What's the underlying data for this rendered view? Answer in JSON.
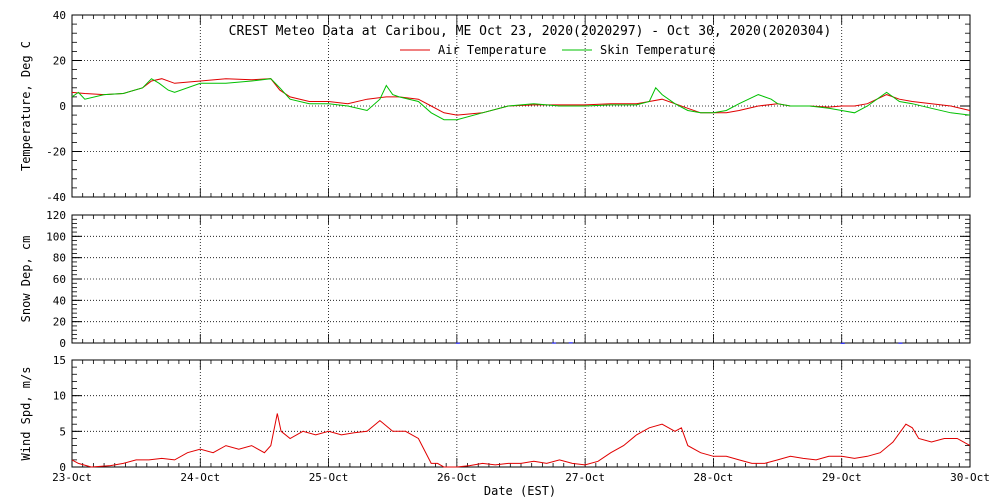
{
  "chart_data": [
    {
      "type": "line",
      "title": "CREST Meteo Data at Caribou, ME   Oct 23, 2020(2020297) - Oct 30, 2020(2020304)",
      "xlabel": "",
      "ylabel": "Temperature, Deg C",
      "xlim": [
        0,
        7
      ],
      "ylim": [
        -40,
        40
      ],
      "yticks": [
        -40,
        -20,
        0,
        20,
        40
      ],
      "grid": true,
      "legend": "top-center",
      "colors": {
        "Air Temperature": "#e00000",
        "Skin Temperature": "#00c000"
      },
      "series": [
        {
          "name": "Air Temperature",
          "x": [
            0,
            0.1,
            0.25,
            0.4,
            0.55,
            0.62,
            0.7,
            0.8,
            1.0,
            1.2,
            1.4,
            1.55,
            1.62,
            1.7,
            1.85,
            2.0,
            2.15,
            2.3,
            2.45,
            2.55,
            2.7,
            2.8,
            2.9,
            3.0,
            3.2,
            3.4,
            3.6,
            3.8,
            4.0,
            4.2,
            4.4,
            4.5,
            4.6,
            4.7,
            4.8,
            4.9,
            5.0,
            5.1,
            5.2,
            5.35,
            5.5,
            5.6,
            5.75,
            5.9,
            6.0,
            6.1,
            6.2,
            6.35,
            6.45,
            6.55,
            6.7,
            6.85,
            7.0
          ],
          "y": [
            6,
            5.5,
            5,
            5.5,
            8,
            11,
            12,
            10,
            11,
            12,
            11.5,
            12,
            7,
            4,
            2,
            2,
            1,
            3,
            4,
            4,
            3,
            0,
            -3,
            -4,
            -3,
            0,
            0.5,
            0.5,
            0.5,
            1,
            1,
            2,
            3,
            1,
            -1,
            -3,
            -3,
            -3,
            -2,
            0,
            1,
            0,
            0,
            -0.5,
            0,
            0,
            1,
            5,
            3,
            2,
            1,
            0,
            -2
          ]
        },
        {
          "name": "Skin Temperature",
          "x": [
            0,
            0.05,
            0.1,
            0.25,
            0.4,
            0.55,
            0.62,
            0.68,
            0.75,
            0.8,
            1.0,
            1.2,
            1.4,
            1.55,
            1.62,
            1.7,
            1.85,
            2.0,
            2.15,
            2.3,
            2.4,
            2.45,
            2.5,
            2.55,
            2.7,
            2.8,
            2.9,
            3.0,
            3.2,
            3.4,
            3.6,
            3.8,
            4.0,
            4.2,
            4.4,
            4.5,
            4.55,
            4.6,
            4.7,
            4.8,
            4.9,
            5.0,
            5.1,
            5.2,
            5.35,
            5.45,
            5.5,
            5.6,
            5.75,
            5.9,
            6.0,
            6.1,
            6.2,
            6.35,
            6.4,
            6.45,
            6.55,
            6.7,
            6.85,
            7.0
          ],
          "y": [
            4,
            6,
            3,
            5,
            5.5,
            8,
            12,
            10,
            7,
            6,
            10,
            10,
            11,
            12,
            8,
            3,
            1,
            1,
            0,
            -2,
            3,
            9,
            5,
            4,
            2,
            -3,
            -6,
            -6,
            -3,
            0,
            1,
            0,
            0,
            0.5,
            0.5,
            2,
            8,
            5,
            1,
            -2,
            -3,
            -3,
            -2,
            1,
            5,
            3,
            1,
            0,
            0,
            -1,
            -2,
            -3,
            0,
            6,
            4,
            2,
            1,
            -1,
            -3,
            -4
          ]
        }
      ]
    },
    {
      "type": "bar",
      "title": "",
      "xlabel": "",
      "ylabel": "Snow Dep, cm",
      "xlim": [
        0,
        7
      ],
      "ylim": [
        0,
        120
      ],
      "yticks": [
        0,
        20,
        40,
        60,
        80,
        100,
        120
      ],
      "grid": true,
      "colors": {
        "snow": "#0000ff"
      },
      "series": [
        {
          "x": [
            3.0,
            3.75,
            3.88,
            6.0,
            6.45
          ],
          "y": [
            0.3,
            0.4,
            0.6,
            0.2,
            0.3
          ]
        }
      ]
    },
    {
      "type": "line",
      "title": "",
      "xlabel": "Date (EST)",
      "ylabel": "Wind Spd, m/s",
      "xlim": [
        0,
        7
      ],
      "ylim": [
        0,
        15
      ],
      "yticks": [
        0,
        5,
        10,
        15
      ],
      "grid": true,
      "colors": {
        "wind": "#e00000"
      },
      "x_tick_labels": [
        "23-Oct",
        "24-Oct",
        "25-Oct",
        "26-Oct",
        "27-Oct",
        "28-Oct",
        "29-Oct",
        "30-Oct"
      ],
      "series": [
        {
          "x": [
            0,
            0.05,
            0.15,
            0.3,
            0.4,
            0.5,
            0.6,
            0.7,
            0.8,
            0.9,
            1.0,
            1.1,
            1.2,
            1.3,
            1.4,
            1.5,
            1.55,
            1.6,
            1.63,
            1.7,
            1.8,
            1.9,
            2.0,
            2.1,
            2.2,
            2.3,
            2.4,
            2.5,
            2.6,
            2.7,
            2.8,
            2.85,
            2.9,
            3.0,
            3.1,
            3.2,
            3.3,
            3.4,
            3.5,
            3.6,
            3.7,
            3.8,
            3.9,
            4.0,
            4.1,
            4.2,
            4.3,
            4.4,
            4.5,
            4.6,
            4.7,
            4.75,
            4.8,
            4.9,
            5.0,
            5.1,
            5.2,
            5.3,
            5.4,
            5.5,
            5.6,
            5.7,
            5.8,
            5.9,
            6.0,
            6.1,
            6.2,
            6.3,
            6.4,
            6.5,
            6.55,
            6.6,
            6.7,
            6.8,
            6.9,
            7.0
          ],
          "y": [
            1,
            0.5,
            0,
            0.2,
            0.5,
            1,
            1,
            1.2,
            1,
            2,
            2.5,
            2,
            3,
            2.5,
            3,
            2,
            3,
            7.5,
            5,
            4,
            5,
            4.5,
            5,
            4.5,
            4.8,
            5,
            6.5,
            5,
            5,
            4,
            0.5,
            0.5,
            0,
            0,
            0.2,
            0.5,
            0.3,
            0.5,
            0.5,
            0.8,
            0.5,
            1,
            0.5,
            0.3,
            0.8,
            2,
            3,
            4.5,
            5.5,
            6,
            5,
            5.5,
            3,
            2,
            1.5,
            1.5,
            1,
            0.5,
            0.5,
            1,
            1.5,
            1.2,
            1,
            1.5,
            1.5,
            1.2,
            1.5,
            2,
            3.5,
            6,
            5.5,
            4,
            3.5,
            4,
            4,
            3
          ]
        }
      ]
    }
  ]
}
